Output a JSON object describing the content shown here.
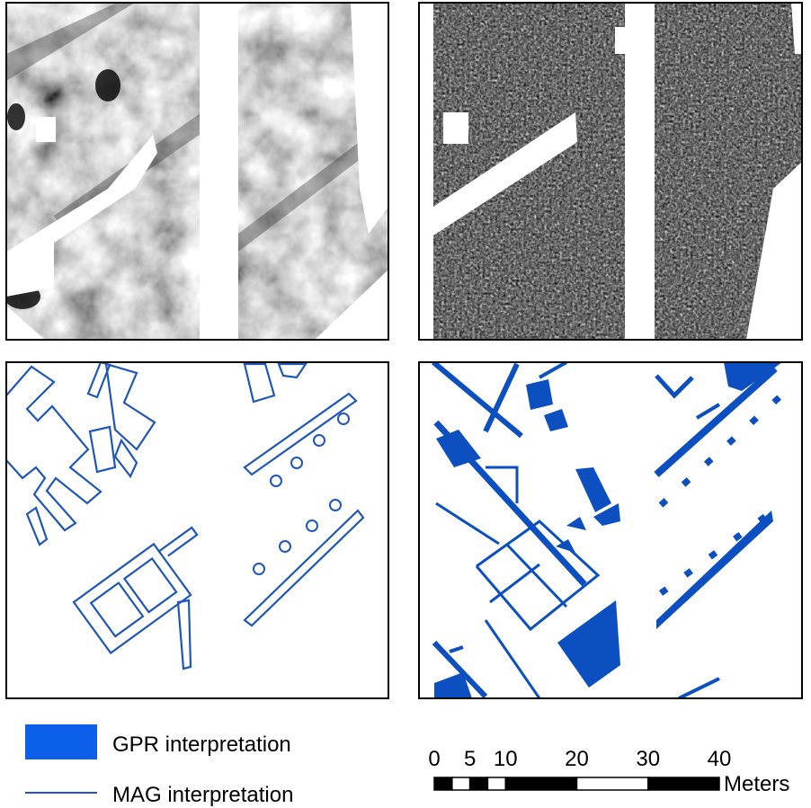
{
  "legend": {
    "items": [
      {
        "label": "GPR interpretation"
      },
      {
        "label": "MAG interpretation"
      }
    ]
  },
  "scale_bar": {
    "ticks": [
      0,
      5,
      10,
      20,
      30,
      40
    ],
    "unit": "Meters"
  }
}
